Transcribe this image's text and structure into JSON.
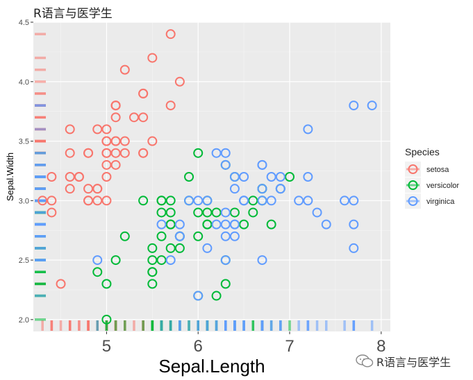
{
  "header": {
    "title": "R语言与医学生"
  },
  "watermark": {
    "text": "R语言与医学生",
    "icon": "wechat-icon"
  },
  "chart_data": {
    "type": "scatter",
    "title": "R语言与医学生",
    "xlabel": "Sepal.Length",
    "ylabel": "Sepal.Width",
    "xlim": [
      4.2,
      8.1
    ],
    "ylim": [
      1.9,
      4.5
    ],
    "x_ticks": [
      5,
      6,
      7,
      8
    ],
    "y_ticks": [
      2.0,
      2.5,
      3.0,
      3.5,
      4.0,
      4.5
    ],
    "x_tick_labels": [
      "5",
      "6",
      "7",
      "8"
    ],
    "y_tick_labels": [
      "2.0",
      "2.5",
      "3.0",
      "3.5",
      "4.0",
      "4.5"
    ],
    "grid": true,
    "rug": true,
    "legend": {
      "title": "Species",
      "position": "right"
    },
    "series": [
      {
        "name": "setosa",
        "color": "#F8766D",
        "points": [
          [
            5.1,
            3.5
          ],
          [
            4.9,
            3.0
          ],
          [
            4.7,
            3.2
          ],
          [
            4.6,
            3.1
          ],
          [
            5.0,
            3.6
          ],
          [
            5.4,
            3.9
          ],
          [
            4.6,
            3.4
          ],
          [
            5.0,
            3.4
          ],
          [
            4.4,
            2.9
          ],
          [
            4.9,
            3.1
          ],
          [
            5.4,
            3.7
          ],
          [
            4.8,
            3.4
          ],
          [
            4.8,
            3.0
          ],
          [
            4.3,
            3.0
          ],
          [
            5.8,
            4.0
          ],
          [
            5.7,
            4.4
          ],
          [
            5.4,
            3.9
          ],
          [
            5.1,
            3.5
          ],
          [
            5.7,
            3.8
          ],
          [
            5.1,
            3.8
          ],
          [
            5.4,
            3.4
          ],
          [
            5.1,
            3.7
          ],
          [
            4.6,
            3.6
          ],
          [
            5.1,
            3.3
          ],
          [
            4.8,
            3.4
          ],
          [
            5.0,
            3.0
          ],
          [
            5.0,
            3.4
          ],
          [
            5.2,
            3.5
          ],
          [
            5.2,
            3.4
          ],
          [
            4.7,
            3.2
          ],
          [
            4.8,
            3.1
          ],
          [
            5.4,
            3.4
          ],
          [
            5.2,
            4.1
          ],
          [
            5.5,
            4.2
          ],
          [
            4.9,
            3.1
          ],
          [
            5.0,
            3.2
          ],
          [
            5.5,
            3.5
          ],
          [
            4.9,
            3.6
          ],
          [
            4.4,
            3.0
          ],
          [
            5.1,
            3.4
          ],
          [
            5.0,
            3.5
          ],
          [
            4.5,
            2.3
          ],
          [
            4.4,
            3.2
          ],
          [
            5.0,
            3.5
          ],
          [
            5.1,
            3.8
          ],
          [
            4.8,
            3.0
          ],
          [
            5.1,
            3.8
          ],
          [
            4.6,
            3.2
          ],
          [
            5.3,
            3.7
          ],
          [
            5.0,
            3.3
          ]
        ]
      },
      {
        "name": "versicolor",
        "color": "#00BA38",
        "points": [
          [
            7.0,
            3.2
          ],
          [
            6.4,
            3.2
          ],
          [
            6.9,
            3.1
          ],
          [
            5.5,
            2.3
          ],
          [
            6.5,
            2.8
          ],
          [
            5.7,
            2.8
          ],
          [
            6.3,
            3.3
          ],
          [
            4.9,
            2.4
          ],
          [
            6.6,
            2.9
          ],
          [
            5.2,
            2.7
          ],
          [
            5.0,
            2.0
          ],
          [
            5.9,
            3.0
          ],
          [
            6.0,
            2.2
          ],
          [
            6.1,
            2.9
          ],
          [
            5.6,
            2.9
          ],
          [
            6.7,
            3.1
          ],
          [
            5.6,
            3.0
          ],
          [
            5.8,
            2.7
          ],
          [
            6.2,
            2.2
          ],
          [
            5.6,
            2.5
          ],
          [
            5.9,
            3.2
          ],
          [
            6.1,
            2.8
          ],
          [
            6.3,
            2.5
          ],
          [
            6.1,
            2.8
          ],
          [
            6.4,
            2.9
          ],
          [
            6.6,
            3.0
          ],
          [
            6.8,
            2.8
          ],
          [
            6.7,
            3.0
          ],
          [
            6.0,
            2.9
          ],
          [
            5.7,
            2.6
          ],
          [
            5.5,
            2.4
          ],
          [
            5.5,
            2.4
          ],
          [
            5.8,
            2.7
          ],
          [
            6.0,
            2.7
          ],
          [
            5.4,
            3.0
          ],
          [
            6.0,
            3.4
          ],
          [
            6.7,
            3.1
          ],
          [
            6.3,
            2.3
          ],
          [
            5.6,
            3.0
          ],
          [
            5.5,
            2.5
          ],
          [
            5.5,
            2.6
          ],
          [
            6.1,
            3.0
          ],
          [
            5.8,
            2.6
          ],
          [
            5.0,
            2.3
          ],
          [
            5.6,
            2.7
          ],
          [
            5.7,
            3.0
          ],
          [
            5.7,
            2.9
          ],
          [
            6.2,
            2.9
          ],
          [
            5.1,
            2.5
          ],
          [
            5.7,
            2.8
          ]
        ]
      },
      {
        "name": "virginica",
        "color": "#619CFF",
        "points": [
          [
            6.3,
            3.3
          ],
          [
            5.8,
            2.7
          ],
          [
            7.1,
            3.0
          ],
          [
            6.3,
            2.9
          ],
          [
            6.5,
            3.0
          ],
          [
            7.6,
            3.0
          ],
          [
            4.9,
            2.5
          ],
          [
            7.3,
            2.9
          ],
          [
            6.7,
            2.5
          ],
          [
            7.2,
            3.6
          ],
          [
            6.5,
            3.2
          ],
          [
            6.4,
            2.7
          ],
          [
            6.8,
            3.0
          ],
          [
            5.7,
            2.5
          ],
          [
            5.8,
            2.8
          ],
          [
            6.4,
            3.2
          ],
          [
            6.5,
            3.0
          ],
          [
            7.7,
            3.8
          ],
          [
            7.7,
            2.6
          ],
          [
            6.0,
            2.2
          ],
          [
            6.9,
            3.2
          ],
          [
            5.6,
            2.8
          ],
          [
            7.7,
            2.8
          ],
          [
            6.3,
            2.7
          ],
          [
            6.7,
            3.3
          ],
          [
            7.2,
            3.2
          ],
          [
            6.2,
            2.8
          ],
          [
            6.1,
            3.0
          ],
          [
            6.4,
            2.8
          ],
          [
            7.2,
            3.0
          ],
          [
            7.4,
            2.8
          ],
          [
            7.9,
            3.8
          ],
          [
            6.4,
            2.8
          ],
          [
            6.3,
            2.8
          ],
          [
            6.1,
            2.6
          ],
          [
            7.7,
            3.0
          ],
          [
            6.3,
            3.4
          ],
          [
            6.4,
            3.1
          ],
          [
            6.0,
            3.0
          ],
          [
            6.9,
            3.1
          ],
          [
            6.7,
            3.1
          ],
          [
            6.9,
            3.1
          ],
          [
            5.8,
            2.7
          ],
          [
            6.8,
            3.2
          ],
          [
            6.7,
            3.3
          ],
          [
            6.7,
            3.0
          ],
          [
            6.3,
            2.5
          ],
          [
            6.5,
            3.0
          ],
          [
            6.2,
            3.4
          ],
          [
            5.9,
            3.0
          ]
        ]
      }
    ]
  }
}
